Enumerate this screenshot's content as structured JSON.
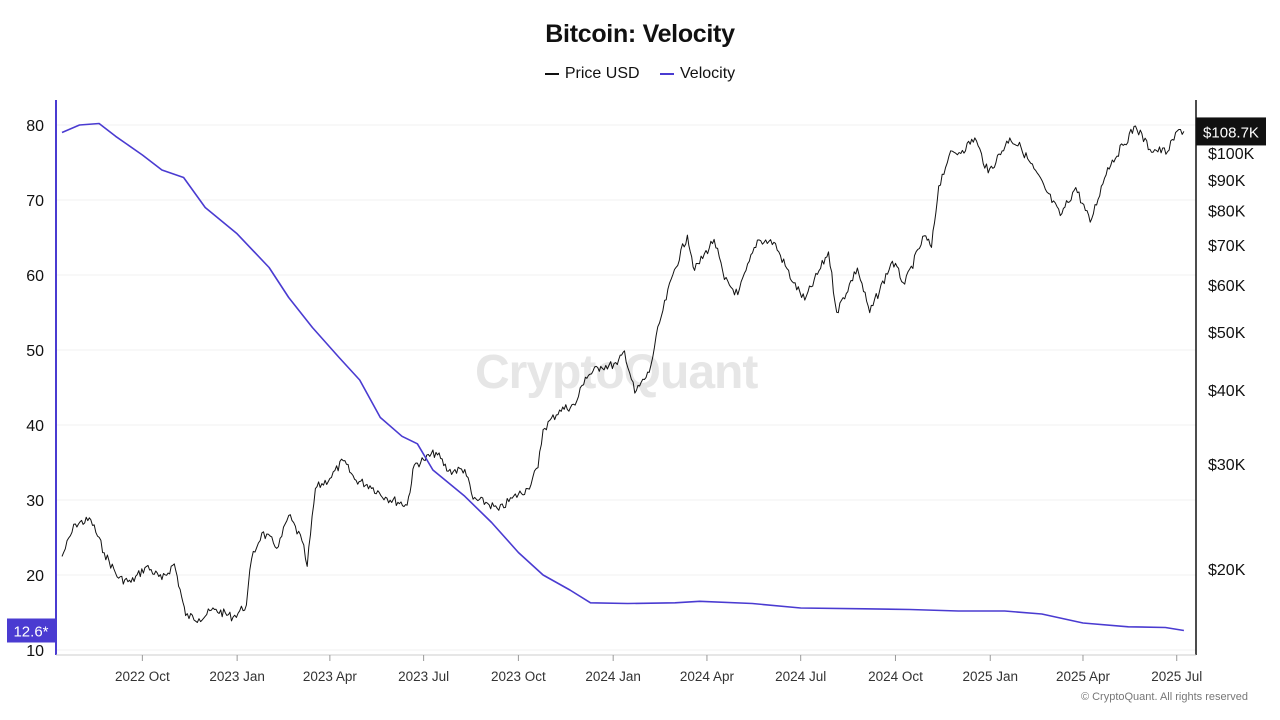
{
  "header": {
    "title": "Bitcoin: Velocity",
    "legend": [
      {
        "label": "Price USD",
        "color": "#111111"
      },
      {
        "label": "Velocity",
        "color": "#4a3bd1"
      }
    ]
  },
  "watermark": "CryptoQuant",
  "footer": "© CryptoQuant. All rights reserved",
  "colors": {
    "price": "#111111",
    "velocity": "#4a3bd1",
    "grid": "#f0f0f0"
  },
  "chart_data": {
    "type": "line",
    "title": "Bitcoin: Velocity",
    "x_ticks": [
      "2022 Oct",
      "2023 Jan",
      "2023 Apr",
      "2023 Jul",
      "2023 Oct",
      "2024 Jan",
      "2024 Apr",
      "2024 Jul",
      "2024 Oct",
      "2025 Jan",
      "2025 Apr",
      "2025 Jul"
    ],
    "x_tick_dates": [
      "2022-10-01",
      "2023-01-01",
      "2023-04-01",
      "2023-07-01",
      "2023-10-01",
      "2024-01-01",
      "2024-04-01",
      "2024-07-01",
      "2024-10-01",
      "2025-01-01",
      "2025-04-01",
      "2025-07-01"
    ],
    "x_range": [
      "2022-07-15",
      "2025-07-10"
    ],
    "left_axis": {
      "ticks": [
        10,
        20,
        30,
        40,
        50,
        60,
        70,
        80
      ],
      "range": [
        10,
        83.5
      ],
      "series": "Velocity"
    },
    "right_axis": {
      "scale": "log",
      "ticks": [
        20000,
        30000,
        40000,
        50000,
        60000,
        70000,
        80000,
        90000,
        100000
      ],
      "tick_labels": [
        "$20K",
        "$30K",
        "$40K",
        "$50K",
        "$60K",
        "$70K",
        "$80K",
        "$90K",
        "$100K"
      ],
      "series": "Price USD"
    },
    "grid": true,
    "legend_position": "top-center",
    "current_values": {
      "velocity": "12.6*",
      "price": "$108.7K"
    },
    "series": [
      {
        "name": "Velocity",
        "axis": "left",
        "points": [
          [
            "2022-07-15",
            79
          ],
          [
            "2022-08-01",
            80
          ],
          [
            "2022-08-20",
            80.2
          ],
          [
            "2022-09-05",
            78.5
          ],
          [
            "2022-10-01",
            76
          ],
          [
            "2022-10-20",
            74
          ],
          [
            "2022-11-10",
            73
          ],
          [
            "2022-12-01",
            69
          ],
          [
            "2023-01-01",
            65.5
          ],
          [
            "2023-02-01",
            61
          ],
          [
            "2023-02-20",
            57
          ],
          [
            "2023-03-15",
            53
          ],
          [
            "2023-04-10",
            49
          ],
          [
            "2023-04-30",
            46
          ],
          [
            "2023-05-20",
            41
          ],
          [
            "2023-06-10",
            38.5
          ],
          [
            "2023-06-25",
            37.5
          ],
          [
            "2023-07-10",
            34
          ],
          [
            "2023-08-10",
            30.5
          ],
          [
            "2023-09-05",
            27
          ],
          [
            "2023-10-01",
            23
          ],
          [
            "2023-10-25",
            20
          ],
          [
            "2023-11-20",
            18
          ],
          [
            "2023-12-10",
            16.3
          ],
          [
            "2024-01-15",
            16.2
          ],
          [
            "2024-03-01",
            16.3
          ],
          [
            "2024-03-25",
            16.5
          ],
          [
            "2024-05-15",
            16.2
          ],
          [
            "2024-07-01",
            15.6
          ],
          [
            "2024-09-01",
            15.5
          ],
          [
            "2024-10-15",
            15.4
          ],
          [
            "2024-12-01",
            15.2
          ],
          [
            "2025-01-15",
            15.2
          ],
          [
            "2025-02-20",
            14.8
          ],
          [
            "2025-04-01",
            13.6
          ],
          [
            "2025-05-15",
            13.1
          ],
          [
            "2025-06-20",
            13.0
          ],
          [
            "2025-07-08",
            12.6
          ]
        ]
      },
      {
        "name": "Price USD",
        "axis": "right",
        "points": [
          [
            "2022-07-15",
            21000
          ],
          [
            "2022-07-28",
            23800
          ],
          [
            "2022-08-12",
            24200
          ],
          [
            "2022-08-25",
            21300
          ],
          [
            "2022-09-08",
            19300
          ],
          [
            "2022-09-20",
            19000
          ],
          [
            "2022-10-05",
            20200
          ],
          [
            "2022-10-20",
            19200
          ],
          [
            "2022-11-01",
            20400
          ],
          [
            "2022-11-08",
            18000
          ],
          [
            "2022-11-12",
            16700
          ],
          [
            "2022-11-25",
            16500
          ],
          [
            "2022-12-10",
            17100
          ],
          [
            "2022-12-28",
            16600
          ],
          [
            "2023-01-10",
            17400
          ],
          [
            "2023-01-15",
            20800
          ],
          [
            "2023-01-25",
            23000
          ],
          [
            "2023-02-10",
            21800
          ],
          [
            "2023-02-20",
            24600
          ],
          [
            "2023-03-05",
            22300
          ],
          [
            "2023-03-10",
            20200
          ],
          [
            "2023-03-18",
            27300
          ],
          [
            "2023-04-01",
            28400
          ],
          [
            "2023-04-14",
            30400
          ],
          [
            "2023-04-25",
            28300
          ],
          [
            "2023-05-10",
            27600
          ],
          [
            "2023-05-25",
            26400
          ],
          [
            "2023-06-15",
            25600
          ],
          [
            "2023-06-22",
            29900
          ],
          [
            "2023-07-01",
            30500
          ],
          [
            "2023-07-13",
            31400
          ],
          [
            "2023-07-25",
            29200
          ],
          [
            "2023-08-10",
            29400
          ],
          [
            "2023-08-18",
            26200
          ],
          [
            "2023-09-01",
            25800
          ],
          [
            "2023-09-12",
            25100
          ],
          [
            "2023-09-25",
            26300
          ],
          [
            "2023-10-10",
            27300
          ],
          [
            "2023-10-20",
            29600
          ],
          [
            "2023-10-25",
            34300
          ],
          [
            "2023-11-10",
            37000
          ],
          [
            "2023-11-25",
            37700
          ],
          [
            "2023-12-05",
            42000
          ],
          [
            "2023-12-20",
            43800
          ],
          [
            "2024-01-05",
            44100
          ],
          [
            "2024-01-12",
            46500
          ],
          [
            "2024-01-22",
            39500
          ],
          [
            "2024-02-05",
            42800
          ],
          [
            "2024-02-15",
            51800
          ],
          [
            "2024-02-28",
            62500
          ],
          [
            "2024-03-13",
            72800
          ],
          [
            "2024-03-20",
            63500
          ],
          [
            "2024-04-08",
            71600
          ],
          [
            "2024-04-18",
            61300
          ],
          [
            "2024-05-01",
            57800
          ],
          [
            "2024-05-20",
            71400
          ],
          [
            "2024-06-05",
            70800
          ],
          [
            "2024-06-24",
            60500
          ],
          [
            "2024-07-05",
            56600
          ],
          [
            "2024-07-28",
            68200
          ],
          [
            "2024-08-05",
            54000
          ],
          [
            "2024-08-25",
            64100
          ],
          [
            "2024-09-06",
            53900
          ],
          [
            "2024-09-28",
            65800
          ],
          [
            "2024-10-10",
            60200
          ],
          [
            "2024-10-29",
            72600
          ],
          [
            "2024-11-05",
            69400
          ],
          [
            "2024-11-12",
            88000
          ],
          [
            "2024-11-22",
            98900
          ],
          [
            "2024-12-05",
            101000
          ],
          [
            "2024-12-17",
            106000
          ],
          [
            "2024-12-30",
            92600
          ],
          [
            "2025-01-20",
            106000
          ],
          [
            "2025-01-31",
            102000
          ],
          [
            "2025-02-25",
            86000
          ],
          [
            "2025-03-10",
            78500
          ],
          [
            "2025-03-25",
            87500
          ],
          [
            "2025-04-08",
            76500
          ],
          [
            "2025-04-25",
            94500
          ],
          [
            "2025-05-10",
            103000
          ],
          [
            "2025-05-22",
            111000
          ],
          [
            "2025-06-05",
            101500
          ],
          [
            "2025-06-22",
            100500
          ],
          [
            "2025-07-03",
            109500
          ],
          [
            "2025-07-08",
            108700
          ]
        ]
      }
    ]
  }
}
